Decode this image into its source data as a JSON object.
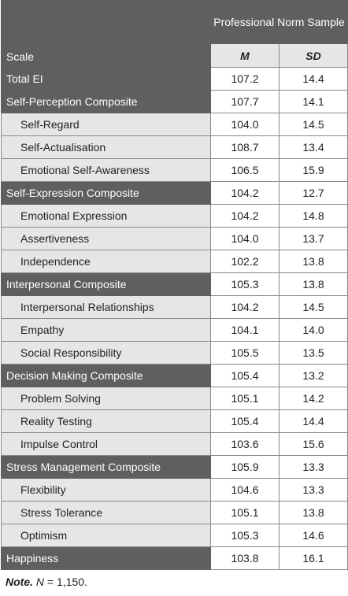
{
  "table": {
    "scale_header": "Scale",
    "group_header": "Professional Norm Sample",
    "mean_header": "M",
    "sd_header": "SD",
    "rows": [
      {
        "label": "Total EI",
        "m": "107.2",
        "sd": "14.4",
        "level": "main"
      },
      {
        "label": "Self-Perception Composite",
        "m": "107.7",
        "sd": "14.1",
        "level": "main"
      },
      {
        "label": "Self-Regard",
        "m": "104.0",
        "sd": "14.5",
        "level": "sub"
      },
      {
        "label": "Self-Actualisation",
        "m": "108.7",
        "sd": "13.4",
        "level": "sub"
      },
      {
        "label": "Emotional Self-Awareness",
        "m": "106.5",
        "sd": "15.9",
        "level": "sub"
      },
      {
        "label": "Self-Expression Composite",
        "m": "104.2",
        "sd": "12.7",
        "level": "main"
      },
      {
        "label": "Emotional Expression",
        "m": "104.2",
        "sd": "14.8",
        "level": "sub"
      },
      {
        "label": "Assertiveness",
        "m": "104.0",
        "sd": "13.7",
        "level": "sub"
      },
      {
        "label": "Independence",
        "m": "102.2",
        "sd": "13.8",
        "level": "sub"
      },
      {
        "label": "Interpersonal Composite",
        "m": "105.3",
        "sd": "13.8",
        "level": "main"
      },
      {
        "label": "Interpersonal Relationships",
        "m": "104.2",
        "sd": "14.5",
        "level": "sub"
      },
      {
        "label": "Empathy",
        "m": "104.1",
        "sd": "14.0",
        "level": "sub"
      },
      {
        "label": "Social Responsibility",
        "m": "105.5",
        "sd": "13.5",
        "level": "sub"
      },
      {
        "label": "Decision Making Composite",
        "m": "105.4",
        "sd": "13.2",
        "level": "main"
      },
      {
        "label": "Problem Solving",
        "m": "105.1",
        "sd": "14.2",
        "level": "sub"
      },
      {
        "label": "Reality Testing",
        "m": "105.4",
        "sd": "14.4",
        "level": "sub"
      },
      {
        "label": "Impulse Control",
        "m": "103.6",
        "sd": "15.6",
        "level": "sub"
      },
      {
        "label": "Stress Management Composite",
        "m": "105.9",
        "sd": "13.3",
        "level": "main"
      },
      {
        "label": "Flexibility",
        "m": "104.6",
        "sd": "13.3",
        "level": "sub"
      },
      {
        "label": "Stress Tolerance",
        "m": "105.1",
        "sd": "13.8",
        "level": "sub"
      },
      {
        "label": "Optimism",
        "m": "105.3",
        "sd": "14.6",
        "level": "sub"
      },
      {
        "label": "Happiness",
        "m": "103.8",
        "sd": "16.1",
        "level": "main"
      }
    ]
  },
  "note": {
    "prefix": "Note.",
    "n_symbol": "N",
    "text": " = 1,150."
  },
  "colors": {
    "header_dark": "#5f5f5f",
    "row_light": "#e6e6e6"
  }
}
